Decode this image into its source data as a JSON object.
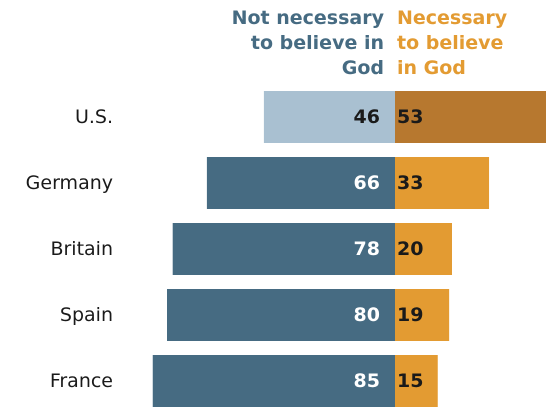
{
  "chart_data": {
    "type": "bar",
    "orientation": "horizontal-diverging",
    "categories": [
      "U.S.",
      "Germany",
      "Britain",
      "Spain",
      "France"
    ],
    "series": [
      {
        "name": "Not necessary to believe in God",
        "legend_text": "Not necessary\nto believe in\nGod",
        "color": "#466b82",
        "highlight_color": "#a9c0d1",
        "values": [
          46,
          66,
          78,
          80,
          85
        ]
      },
      {
        "name": "Necessary to believe in God",
        "legend_text": "Necessary\nto believe\nin God",
        "color": "#e39b32",
        "highlight_color": "#b7782f",
        "values": [
          53,
          33,
          20,
          19,
          15
        ]
      }
    ],
    "highlighted_category": "U.S.",
    "axis_visible": false,
    "grid": false,
    "legend_placement": "top"
  }
}
